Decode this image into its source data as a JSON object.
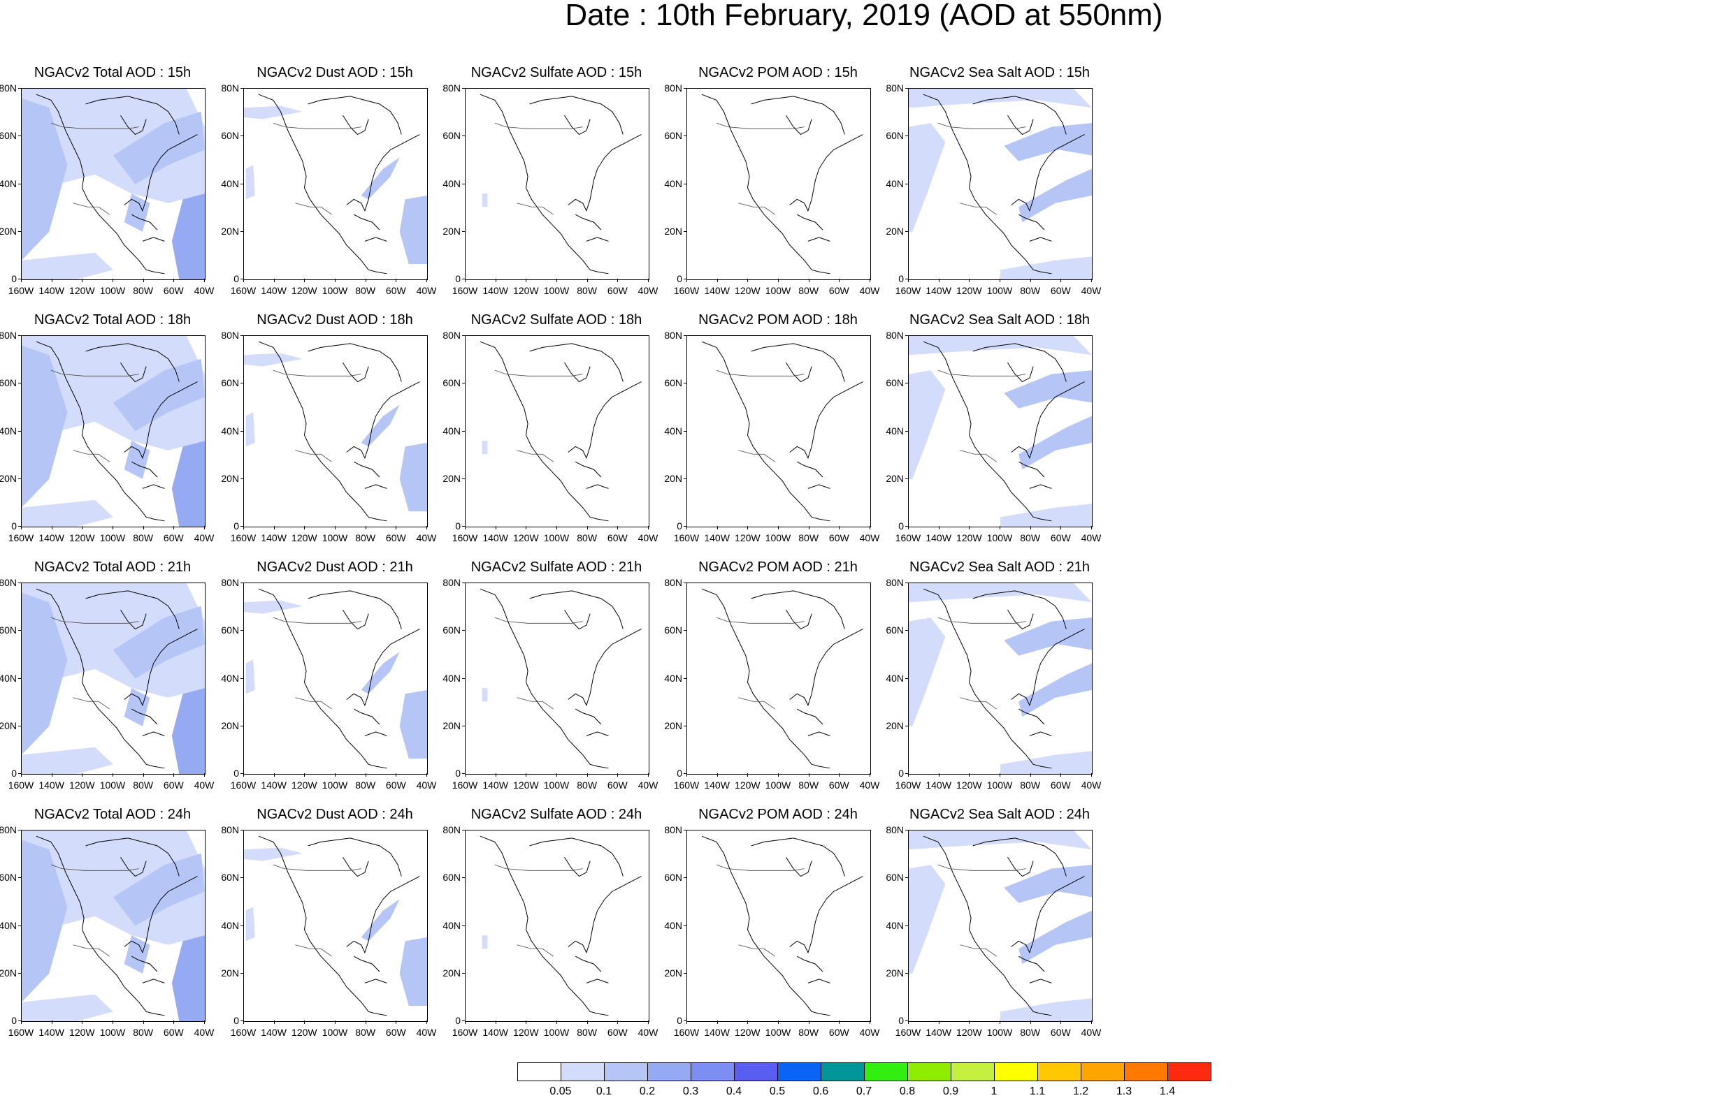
{
  "title": "Date : 10th February, 2019 (AOD at 550nm)",
  "map": {
    "lat_ticks": [
      "80N",
      "60N",
      "40N",
      "20N",
      "0"
    ],
    "lon_ticks": [
      "160W",
      "140W",
      "120W",
      "100W",
      "80W",
      "60W",
      "40W"
    ],
    "region": {
      "lon_min": -160,
      "lon_max": -40,
      "lat_min": 0,
      "lat_max": 80
    }
  },
  "panels": [
    {
      "variable": "total",
      "hour": "15h",
      "title": "NGACv2 Total AOD : 15h"
    },
    {
      "variable": "dust",
      "hour": "15h",
      "title": "NGACv2 Dust AOD : 15h"
    },
    {
      "variable": "sulfate",
      "hour": "15h",
      "title": "NGACv2 Sulfate AOD : 15h"
    },
    {
      "variable": "pom",
      "hour": "15h",
      "title": "NGACv2 POM AOD : 15h"
    },
    {
      "variable": "seasalt",
      "hour": "15h",
      "title": "NGACv2 Sea Salt AOD : 15h"
    },
    {
      "variable": "total",
      "hour": "18h",
      "title": "NGACv2 Total AOD : 18h"
    },
    {
      "variable": "dust",
      "hour": "18h",
      "title": "NGACv2 Dust AOD : 18h"
    },
    {
      "variable": "sulfate",
      "hour": "18h",
      "title": "NGACv2 Sulfate AOD : 18h"
    },
    {
      "variable": "pom",
      "hour": "18h",
      "title": "NGACv2 POM AOD : 18h"
    },
    {
      "variable": "seasalt",
      "hour": "18h",
      "title": "NGACv2 Sea Salt AOD : 18h"
    },
    {
      "variable": "total",
      "hour": "21h",
      "title": "NGACv2 Total AOD : 21h"
    },
    {
      "variable": "dust",
      "hour": "21h",
      "title": "NGACv2 Dust AOD : 21h"
    },
    {
      "variable": "sulfate",
      "hour": "21h",
      "title": "NGACv2 Sulfate AOD : 21h"
    },
    {
      "variable": "pom",
      "hour": "21h",
      "title": "NGACv2 POM AOD : 21h"
    },
    {
      "variable": "seasalt",
      "hour": "21h",
      "title": "NGACv2 Sea Salt AOD : 21h"
    },
    {
      "variable": "total",
      "hour": "24h",
      "title": "NGACv2 Total AOD : 24h"
    },
    {
      "variable": "dust",
      "hour": "24h",
      "title": "NGACv2 Dust AOD : 24h"
    },
    {
      "variable": "sulfate",
      "hour": "24h",
      "title": "NGACv2 Sulfate AOD : 24h"
    },
    {
      "variable": "pom",
      "hour": "24h",
      "title": "NGACv2 POM AOD : 24h"
    },
    {
      "variable": "seasalt",
      "hour": "24h",
      "title": "NGACv2 Sea Salt  AOD : 24h"
    }
  ],
  "colorbar": {
    "colors": [
      "#ffffff",
      "#d3dcfa",
      "#b5c5f6",
      "#96aaf4",
      "#7d8ef2",
      "#5a5ef0",
      "#0a64f5",
      "#00969a",
      "#33ee11",
      "#8fee00",
      "#c6f040",
      "#ffff00",
      "#ffc800",
      "#ffa500",
      "#ff7800",
      "#ff2a10"
    ],
    "labels": [
      "0.05",
      "0.1",
      "0.2",
      "0.3",
      "0.4",
      "0.5",
      "0.6",
      "0.7",
      "0.8",
      "0.9",
      "1",
      "1.1",
      "1.2",
      "1.3",
      "1.4"
    ]
  }
}
